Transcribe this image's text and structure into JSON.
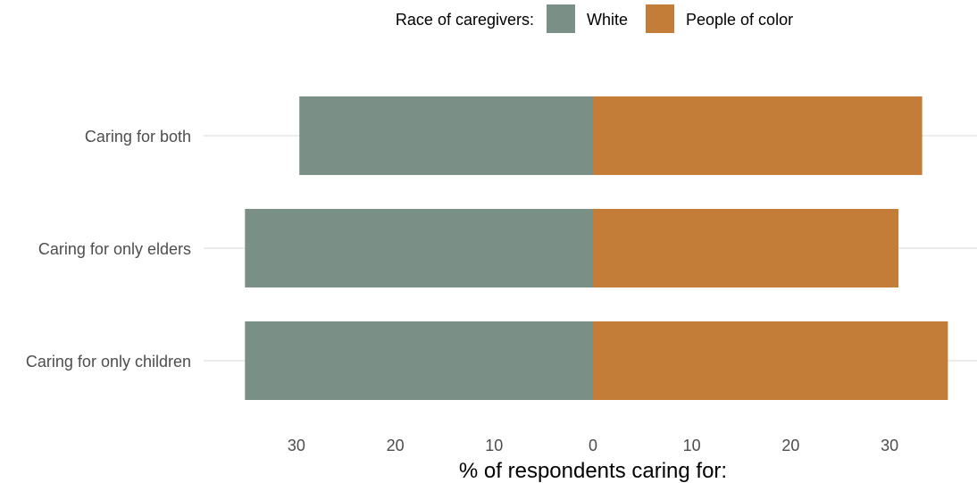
{
  "chart_data": {
    "type": "bar",
    "orientation": "horizontal-diverging",
    "categories": [
      "Caring for both",
      "Caring for only elders",
      "Caring for only children"
    ],
    "series": [
      {
        "name": "White",
        "color": "#7a8f86",
        "direction": "left",
        "values": [
          29.7,
          35.2,
          35.2
        ]
      },
      {
        "name": "People of color",
        "color": "#c47d39",
        "direction": "right",
        "values": [
          33.3,
          30.9,
          35.9
        ]
      }
    ],
    "xlim": [
      -36,
      36
    ],
    "xticks": [
      -30,
      -20,
      -10,
      0,
      10,
      20,
      30
    ],
    "xtick_labels": [
      "30",
      "20",
      "10",
      "0",
      "10",
      "20",
      "30"
    ],
    "xlabel": "% of respondents caring for:",
    "ylabel": "",
    "legend": {
      "title": "Race of caregivers:",
      "position": "top"
    },
    "grid": {
      "major_y": true,
      "major_x": false
    }
  }
}
